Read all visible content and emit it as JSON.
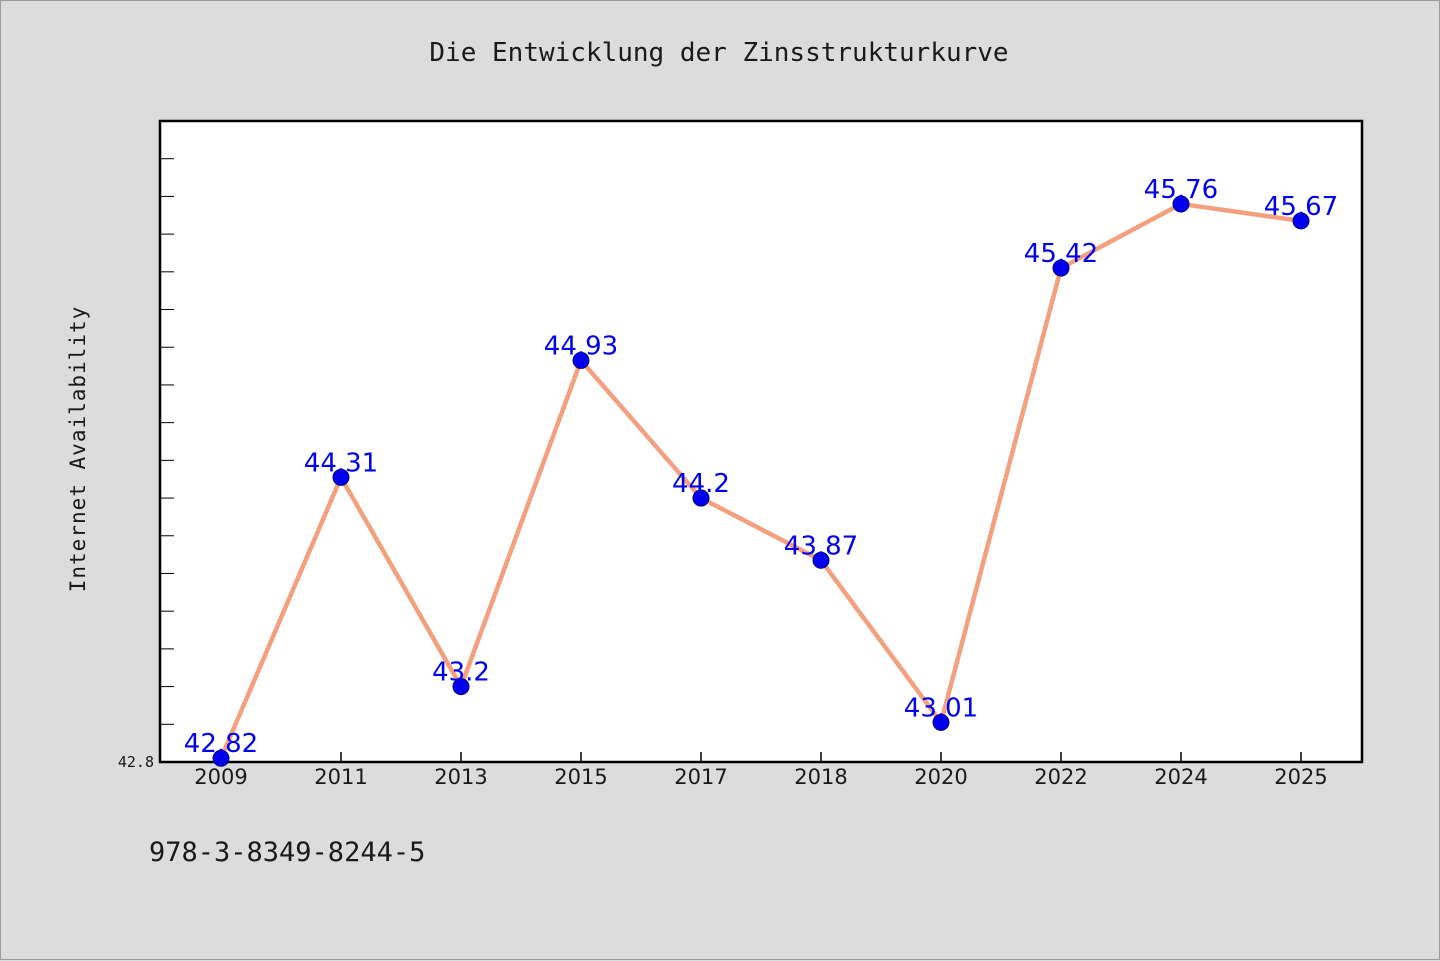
{
  "colors": {
    "background": "#dcdcdc",
    "plot_background": "#ffffff",
    "line": "#f4a07e",
    "marker": "#0000ee",
    "data_label": "#0000ee",
    "frame": "#000000"
  },
  "chart_data": {
    "type": "line",
    "title": "Die Entwicklung der Zinsstrukturkurve",
    "xlabel": "",
    "ylabel": "Internet Availability",
    "categories": [
      "2009",
      "2011",
      "2013",
      "2015",
      "2017",
      "2018",
      "2020",
      "2022",
      "2024",
      "2025"
    ],
    "series": [
      {
        "values": [
          42.82,
          44.31,
          43.2,
          44.93,
          44.2,
          43.87,
          43.01,
          45.42,
          45.76,
          45.67
        ],
        "labels": [
          "42.82",
          "44.31",
          "43.2",
          "44.93",
          "44.2",
          "43.87",
          "43.01",
          "45.42",
          "45.76",
          "45.67"
        ]
      }
    ],
    "ylim": [
      42.8,
      46.2
    ],
    "ytick_labels": [
      "42.8"
    ],
    "grid": false,
    "legend": "none"
  },
  "footer": {
    "identifier": "978-3-8349-8244-5"
  }
}
